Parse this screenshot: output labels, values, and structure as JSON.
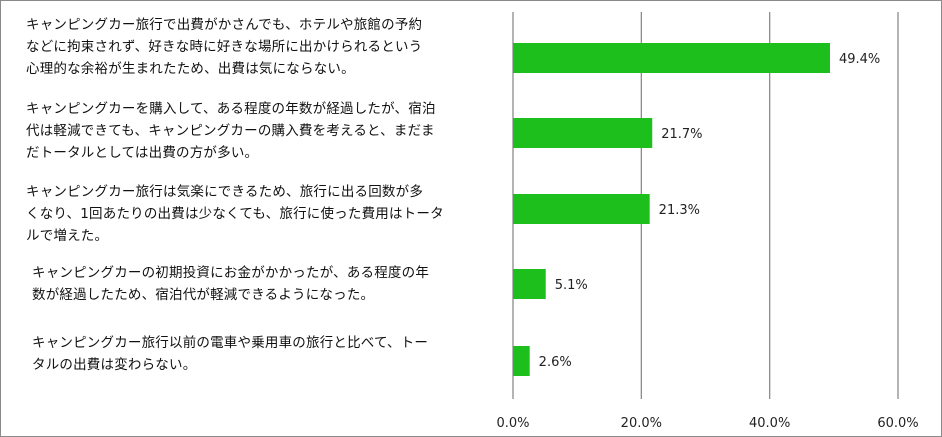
{
  "chart_data": {
    "type": "bar",
    "orientation": "horizontal",
    "categories": [
      "キャンピングカー旅行で出費がかさんでも、ホテルや旅館の予約\nなどに拘束されず、好きな時に好きな場所に出かけられるという\n心理的な余裕が生まれたため、出費は気にならない。",
      "キャンピングカーを購入して、ある程度の年数が経過したが、宿泊\n代は軽減できても、キャンピングカーの購入費を考えると、まだま\nだトータルとしては出費の方が多い。",
      "キャンピングカー旅行は気楽にできるため、旅行に出る回数が多\nくなり、1回あたりの出費は少なくても、旅行に使った費用はトータ\nルで増えた。",
      "キャンピングカーの初期投資にお金がかかったが、ある程度の年\n数が経過したため、宿泊代が軽減できるようになった。",
      "キャンピングカー旅行以前の電車や乗用車の旅行と比べて、トー\nタルの出費は変わらない。"
    ],
    "values": [
      49.4,
      21.7,
      21.3,
      5.1,
      2.6
    ],
    "value_labels": [
      "49.4%",
      "21.7%",
      "21.3%",
      "5.1%",
      "2.6%"
    ],
    "xlim": [
      0,
      60
    ],
    "xticks": [
      0,
      20,
      40,
      60
    ],
    "xtick_labels": [
      "0.0%",
      "20.0%",
      "40.0%",
      "60.0%"
    ],
    "grid": true,
    "bar_color": "#1cbf1c",
    "grid_color": "#8c8c8c",
    "title": "",
    "xlabel": "",
    "ylabel": ""
  }
}
